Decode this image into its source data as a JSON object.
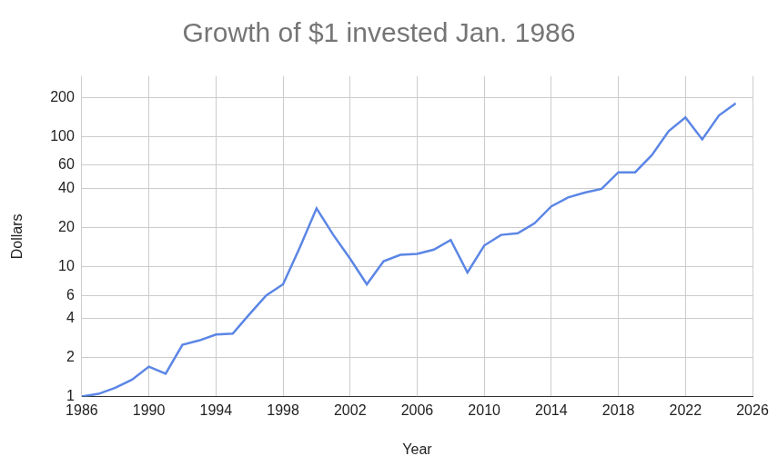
{
  "chart_data": {
    "type": "line",
    "title": "Growth of $1 invested Jan. 1986",
    "x_label": "Year",
    "y_label": "Dollars",
    "x": [
      1986,
      1987,
      1988,
      1989,
      1990,
      1991,
      1992,
      1993,
      1994,
      1995,
      1996,
      1997,
      1998,
      1999,
      2000,
      2001,
      2002,
      2003,
      2004,
      2005,
      2006,
      2007,
      2008,
      2009,
      2010,
      2011,
      2012,
      2013,
      2014,
      2015,
      2016,
      2017,
      2018,
      2019,
      2020,
      2021,
      2022,
      2023,
      2024,
      2025
    ],
    "values": [
      1,
      1.05,
      1.17,
      1.35,
      1.7,
      1.5,
      2.5,
      2.7,
      3.0,
      3.05,
      4.3,
      6.0,
      7.3,
      14,
      28,
      17.5,
      11.5,
      7.3,
      11,
      12.3,
      12.5,
      13.5,
      16,
      9,
      14.5,
      17.5,
      18,
      21.5,
      29,
      34,
      37,
      39.5,
      53,
      53,
      72,
      110,
      140,
      95,
      145,
      180
    ],
    "color": "#5b86e5",
    "xlim": [
      1986,
      2026
    ],
    "xticks": [
      1986,
      1990,
      1994,
      1998,
      2002,
      2006,
      2010,
      2014,
      2018,
      2022,
      2026
    ],
    "ylim": [
      1,
      290
    ],
    "yticks": [
      1,
      2,
      4,
      6,
      10,
      20,
      40,
      60,
      100,
      200
    ],
    "log": "y",
    "grid": true
  }
}
